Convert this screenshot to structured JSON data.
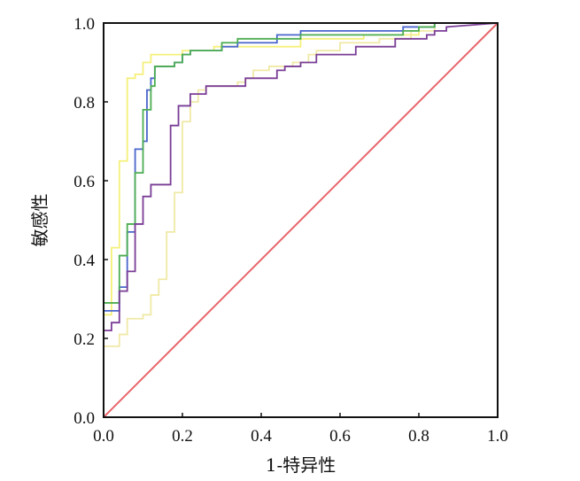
{
  "chart_data": {
    "type": "line",
    "title": "",
    "xlabel": "1-特异性",
    "ylabel": "敏感性",
    "xlim": [
      0.0,
      1.0
    ],
    "ylim": [
      0.0,
      1.0
    ],
    "x_ticks": [
      "0.0",
      "0.2",
      "0.4",
      "0.6",
      "0.8",
      "1.0"
    ],
    "y_ticks": [
      "0.0",
      "0.2",
      "0.4",
      "0.6",
      "0.8",
      "1.0"
    ],
    "grid": false,
    "legend": "none",
    "series": [
      {
        "color": "#f5f07a",
        "points": [
          [
            0,
            0.1
          ],
          [
            0,
            0.26
          ],
          [
            0.02,
            0.26
          ],
          [
            0.02,
            0.43
          ],
          [
            0.04,
            0.43
          ],
          [
            0.04,
            0.65
          ],
          [
            0.06,
            0.65
          ],
          [
            0.06,
            0.86
          ],
          [
            0.08,
            0.86
          ],
          [
            0.08,
            0.87
          ],
          [
            0.1,
            0.87
          ],
          [
            0.1,
            0.9
          ],
          [
            0.12,
            0.9
          ],
          [
            0.12,
            0.92
          ],
          [
            0.2,
            0.92
          ],
          [
            0.2,
            0.93
          ],
          [
            0.28,
            0.93
          ],
          [
            0.28,
            0.94
          ],
          [
            0.5,
            0.94
          ],
          [
            0.5,
            0.96
          ],
          [
            0.66,
            0.96
          ],
          [
            0.66,
            0.97
          ],
          [
            0.8,
            0.97
          ],
          [
            0.8,
            0.99
          ],
          [
            0.84,
            0.99
          ],
          [
            0.84,
            1.0
          ],
          [
            1.0,
            1.0
          ]
        ]
      },
      {
        "color": "#f0e9a6",
        "points": [
          [
            0,
            0.1
          ],
          [
            0,
            0.18
          ],
          [
            0.04,
            0.18
          ],
          [
            0.04,
            0.21
          ],
          [
            0.06,
            0.21
          ],
          [
            0.06,
            0.25
          ],
          [
            0.1,
            0.25
          ],
          [
            0.1,
            0.26
          ],
          [
            0.12,
            0.26
          ],
          [
            0.12,
            0.31
          ],
          [
            0.14,
            0.31
          ],
          [
            0.14,
            0.35
          ],
          [
            0.16,
            0.35
          ],
          [
            0.16,
            0.47
          ],
          [
            0.18,
            0.47
          ],
          [
            0.18,
            0.57
          ],
          [
            0.2,
            0.57
          ],
          [
            0.2,
            0.75
          ],
          [
            0.22,
            0.75
          ],
          [
            0.22,
            0.8
          ],
          [
            0.24,
            0.8
          ],
          [
            0.24,
            0.83
          ],
          [
            0.26,
            0.83
          ],
          [
            0.26,
            0.84
          ],
          [
            0.34,
            0.84
          ],
          [
            0.34,
            0.85
          ],
          [
            0.36,
            0.85
          ],
          [
            0.36,
            0.86
          ],
          [
            0.38,
            0.86
          ],
          [
            0.38,
            0.88
          ],
          [
            0.42,
            0.88
          ],
          [
            0.42,
            0.89
          ],
          [
            0.48,
            0.89
          ],
          [
            0.48,
            0.9
          ],
          [
            0.52,
            0.9
          ],
          [
            0.52,
            0.92
          ],
          [
            0.54,
            0.92
          ],
          [
            0.54,
            0.93
          ],
          [
            0.6,
            0.93
          ],
          [
            0.6,
            0.95
          ],
          [
            0.7,
            0.95
          ],
          [
            0.7,
            0.96
          ],
          [
            0.78,
            0.96
          ],
          [
            0.78,
            0.98
          ],
          [
            0.84,
            0.98
          ],
          [
            0.84,
            1.0
          ],
          [
            1.0,
            1.0
          ]
        ]
      },
      {
        "color": "#4a66cc",
        "points": [
          [
            0,
            0.25
          ],
          [
            0,
            0.27
          ],
          [
            0.04,
            0.27
          ],
          [
            0.04,
            0.33
          ],
          [
            0.06,
            0.33
          ],
          [
            0.06,
            0.47
          ],
          [
            0.08,
            0.47
          ],
          [
            0.08,
            0.68
          ],
          [
            0.1,
            0.68
          ],
          [
            0.1,
            0.7
          ],
          [
            0.11,
            0.7
          ],
          [
            0.11,
            0.83
          ],
          [
            0.12,
            0.83
          ],
          [
            0.12,
            0.86
          ],
          [
            0.13,
            0.86
          ],
          [
            0.13,
            0.89
          ],
          [
            0.18,
            0.89
          ],
          [
            0.18,
            0.9
          ],
          [
            0.2,
            0.9
          ],
          [
            0.2,
            0.92
          ],
          [
            0.22,
            0.92
          ],
          [
            0.22,
            0.93
          ],
          [
            0.3,
            0.93
          ],
          [
            0.3,
            0.94
          ],
          [
            0.34,
            0.94
          ],
          [
            0.34,
            0.95
          ],
          [
            0.44,
            0.95
          ],
          [
            0.44,
            0.97
          ],
          [
            0.5,
            0.97
          ],
          [
            0.5,
            0.98
          ],
          [
            0.76,
            0.98
          ],
          [
            0.76,
            0.99
          ],
          [
            0.84,
            0.99
          ],
          [
            0.84,
            1.0
          ],
          [
            1.0,
            1.0
          ]
        ]
      },
      {
        "color": "#4cad52",
        "points": [
          [
            0,
            0.26
          ],
          [
            0,
            0.29
          ],
          [
            0.04,
            0.29
          ],
          [
            0.04,
            0.41
          ],
          [
            0.06,
            0.41
          ],
          [
            0.06,
            0.49
          ],
          [
            0.08,
            0.49
          ],
          [
            0.08,
            0.62
          ],
          [
            0.1,
            0.62
          ],
          [
            0.1,
            0.78
          ],
          [
            0.12,
            0.78
          ],
          [
            0.12,
            0.84
          ],
          [
            0.13,
            0.84
          ],
          [
            0.13,
            0.89
          ],
          [
            0.18,
            0.89
          ],
          [
            0.18,
            0.9
          ],
          [
            0.2,
            0.9
          ],
          [
            0.2,
            0.92
          ],
          [
            0.22,
            0.92
          ],
          [
            0.22,
            0.93
          ],
          [
            0.3,
            0.93
          ],
          [
            0.3,
            0.95
          ],
          [
            0.34,
            0.95
          ],
          [
            0.34,
            0.96
          ],
          [
            0.5,
            0.96
          ],
          [
            0.5,
            0.97
          ],
          [
            0.76,
            0.97
          ],
          [
            0.76,
            0.98
          ],
          [
            0.8,
            0.98
          ],
          [
            0.8,
            0.99
          ],
          [
            0.84,
            0.99
          ],
          [
            0.84,
            1.0
          ],
          [
            1.0,
            1.0
          ]
        ]
      },
      {
        "color": "#7a3d96",
        "points": [
          [
            0,
            0.16
          ],
          [
            0,
            0.22
          ],
          [
            0.02,
            0.22
          ],
          [
            0.02,
            0.24
          ],
          [
            0.04,
            0.24
          ],
          [
            0.04,
            0.32
          ],
          [
            0.06,
            0.32
          ],
          [
            0.06,
            0.37
          ],
          [
            0.08,
            0.37
          ],
          [
            0.08,
            0.49
          ],
          [
            0.1,
            0.49
          ],
          [
            0.1,
            0.56
          ],
          [
            0.12,
            0.56
          ],
          [
            0.12,
            0.59
          ],
          [
            0.17,
            0.59
          ],
          [
            0.17,
            0.74
          ],
          [
            0.19,
            0.74
          ],
          [
            0.19,
            0.79
          ],
          [
            0.22,
            0.79
          ],
          [
            0.22,
            0.82
          ],
          [
            0.26,
            0.82
          ],
          [
            0.26,
            0.84
          ],
          [
            0.36,
            0.84
          ],
          [
            0.36,
            0.86
          ],
          [
            0.44,
            0.86
          ],
          [
            0.44,
            0.88
          ],
          [
            0.46,
            0.88
          ],
          [
            0.46,
            0.89
          ],
          [
            0.5,
            0.89
          ],
          [
            0.5,
            0.9
          ],
          [
            0.54,
            0.9
          ],
          [
            0.54,
            0.92
          ],
          [
            0.64,
            0.92
          ],
          [
            0.64,
            0.94
          ],
          [
            0.74,
            0.94
          ],
          [
            0.74,
            0.96
          ],
          [
            0.82,
            0.96
          ],
          [
            0.82,
            0.97
          ],
          [
            0.84,
            0.97
          ],
          [
            0.84,
            0.98
          ],
          [
            0.87,
            0.98
          ],
          [
            0.87,
            0.99
          ],
          [
            1.0,
            1.0
          ]
        ]
      },
      {
        "color": "#e8646a",
        "points": [
          [
            0,
            0
          ],
          [
            1,
            1
          ]
        ]
      }
    ]
  }
}
